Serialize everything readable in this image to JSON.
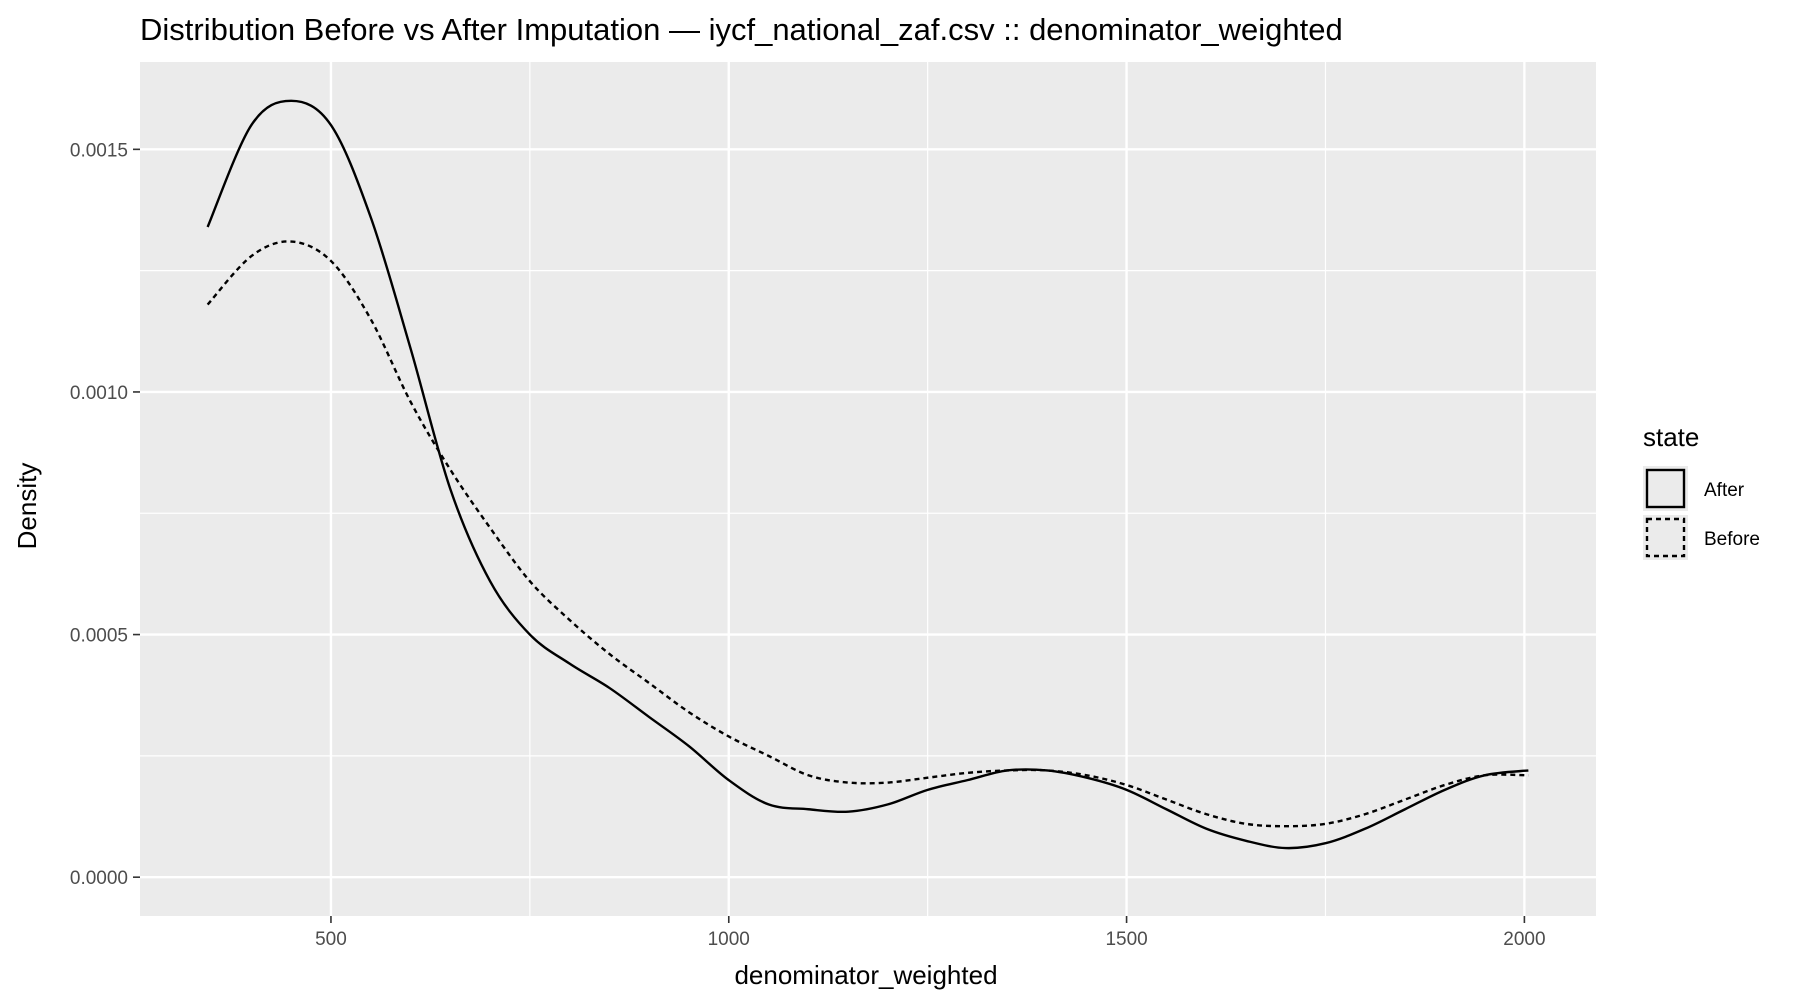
{
  "chart_data": {
    "type": "line",
    "title": "Distribution Before vs After Imputation — iycf_national_zaf.csv :: denominator_weighted",
    "xlabel": "denominator_weighted",
    "ylabel": "Density",
    "xlim": [
      260,
      2090
    ],
    "ylim": [
      -8e-05,
      0.00168
    ],
    "x_ticks": [
      500,
      1000,
      1500,
      2000
    ],
    "x_tick_labels": [
      "500",
      "1000",
      "1500",
      "2000"
    ],
    "y_ticks": [
      0,
      0.0005,
      0.001,
      0.0015
    ],
    "y_tick_labels": [
      "0.0000",
      "0.0005",
      "0.0010",
      "0.0015"
    ],
    "grid": true,
    "legend": {
      "title": "state",
      "position": "right",
      "entries": [
        "After",
        "Before"
      ]
    },
    "series": [
      {
        "name": "After",
        "line_style": "solid",
        "color": "#000000",
        "x": [
          345,
          400,
          450,
          500,
          550,
          600,
          650,
          700,
          750,
          800,
          850,
          900,
          950,
          1000,
          1050,
          1100,
          1150,
          1200,
          1250,
          1300,
          1350,
          1400,
          1450,
          1500,
          1550,
          1600,
          1650,
          1700,
          1750,
          1800,
          1850,
          1900,
          1950,
          2005
        ],
        "values": [
          0.00134,
          0.00155,
          0.0016,
          0.00155,
          0.00136,
          0.00109,
          0.0008,
          0.00061,
          0.0005,
          0.00044,
          0.00039,
          0.00033,
          0.00027,
          0.0002,
          0.00015,
          0.00014,
          0.000135,
          0.00015,
          0.00018,
          0.0002,
          0.00022,
          0.00022,
          0.000205,
          0.00018,
          0.00014,
          0.0001,
          7.5e-05,
          6e-05,
          7e-05,
          0.0001,
          0.00014,
          0.00018,
          0.00021,
          0.00022
        ]
      },
      {
        "name": "Before",
        "line_style": "dashed",
        "color": "#000000",
        "x": [
          345,
          400,
          450,
          500,
          550,
          600,
          650,
          700,
          750,
          800,
          850,
          900,
          950,
          1000,
          1050,
          1100,
          1150,
          1200,
          1250,
          1300,
          1350,
          1400,
          1450,
          1500,
          1550,
          1600,
          1650,
          1700,
          1750,
          1800,
          1850,
          1900,
          1950,
          2005
        ],
        "values": [
          0.00118,
          0.00128,
          0.00131,
          0.00127,
          0.00115,
          0.00098,
          0.00084,
          0.00072,
          0.00061,
          0.00053,
          0.00046,
          0.0004,
          0.00034,
          0.00029,
          0.00025,
          0.00021,
          0.000195,
          0.000195,
          0.000205,
          0.000215,
          0.00022,
          0.00022,
          0.00021,
          0.00019,
          0.00016,
          0.00013,
          0.00011,
          0.000105,
          0.00011,
          0.00013,
          0.00016,
          0.00019,
          0.00021,
          0.00021
        ]
      }
    ]
  }
}
